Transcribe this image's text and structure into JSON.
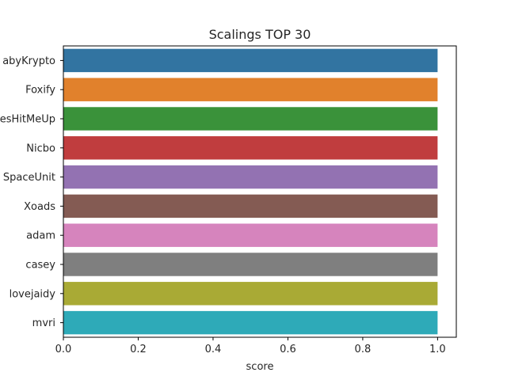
{
  "chart_data": {
    "type": "bar",
    "orientation": "horizontal",
    "title": "Scalings TOP 30",
    "xlabel": "score",
    "ylabel": "",
    "categories": [
      "BabyKrypto",
      "Foxify",
      "GuysHitMeUp",
      "Nicbo",
      "SpaceUnit",
      "Xoads",
      "adam",
      "casey",
      "lovejaidy",
      "mvri"
    ],
    "category_labels_visible": [
      "abyKrypto",
      "Foxify",
      "esHitMeUp",
      "Nicbo",
      "SpaceUnit",
      "Xoads",
      "adam",
      "casey",
      "lovejaidy",
      "mvri"
    ],
    "values": [
      1.0,
      1.0,
      1.0,
      1.0,
      1.0,
      1.0,
      1.0,
      1.0,
      1.0,
      1.0
    ],
    "colors": [
      "#3274a1",
      "#e1812c",
      "#3a923a",
      "#c03d3e",
      "#9372b2",
      "#845b53",
      "#d684bd",
      "#7f7f7f",
      "#a9aa35",
      "#2eaab8"
    ],
    "xlim": [
      0,
      1.05
    ],
    "xticks": [
      0.0,
      0.2,
      0.4,
      0.6,
      0.8,
      1.0
    ],
    "xtick_labels": [
      "0.0",
      "0.2",
      "0.4",
      "0.6",
      "0.8",
      "1.0"
    ],
    "grid": false,
    "legend": "none"
  }
}
